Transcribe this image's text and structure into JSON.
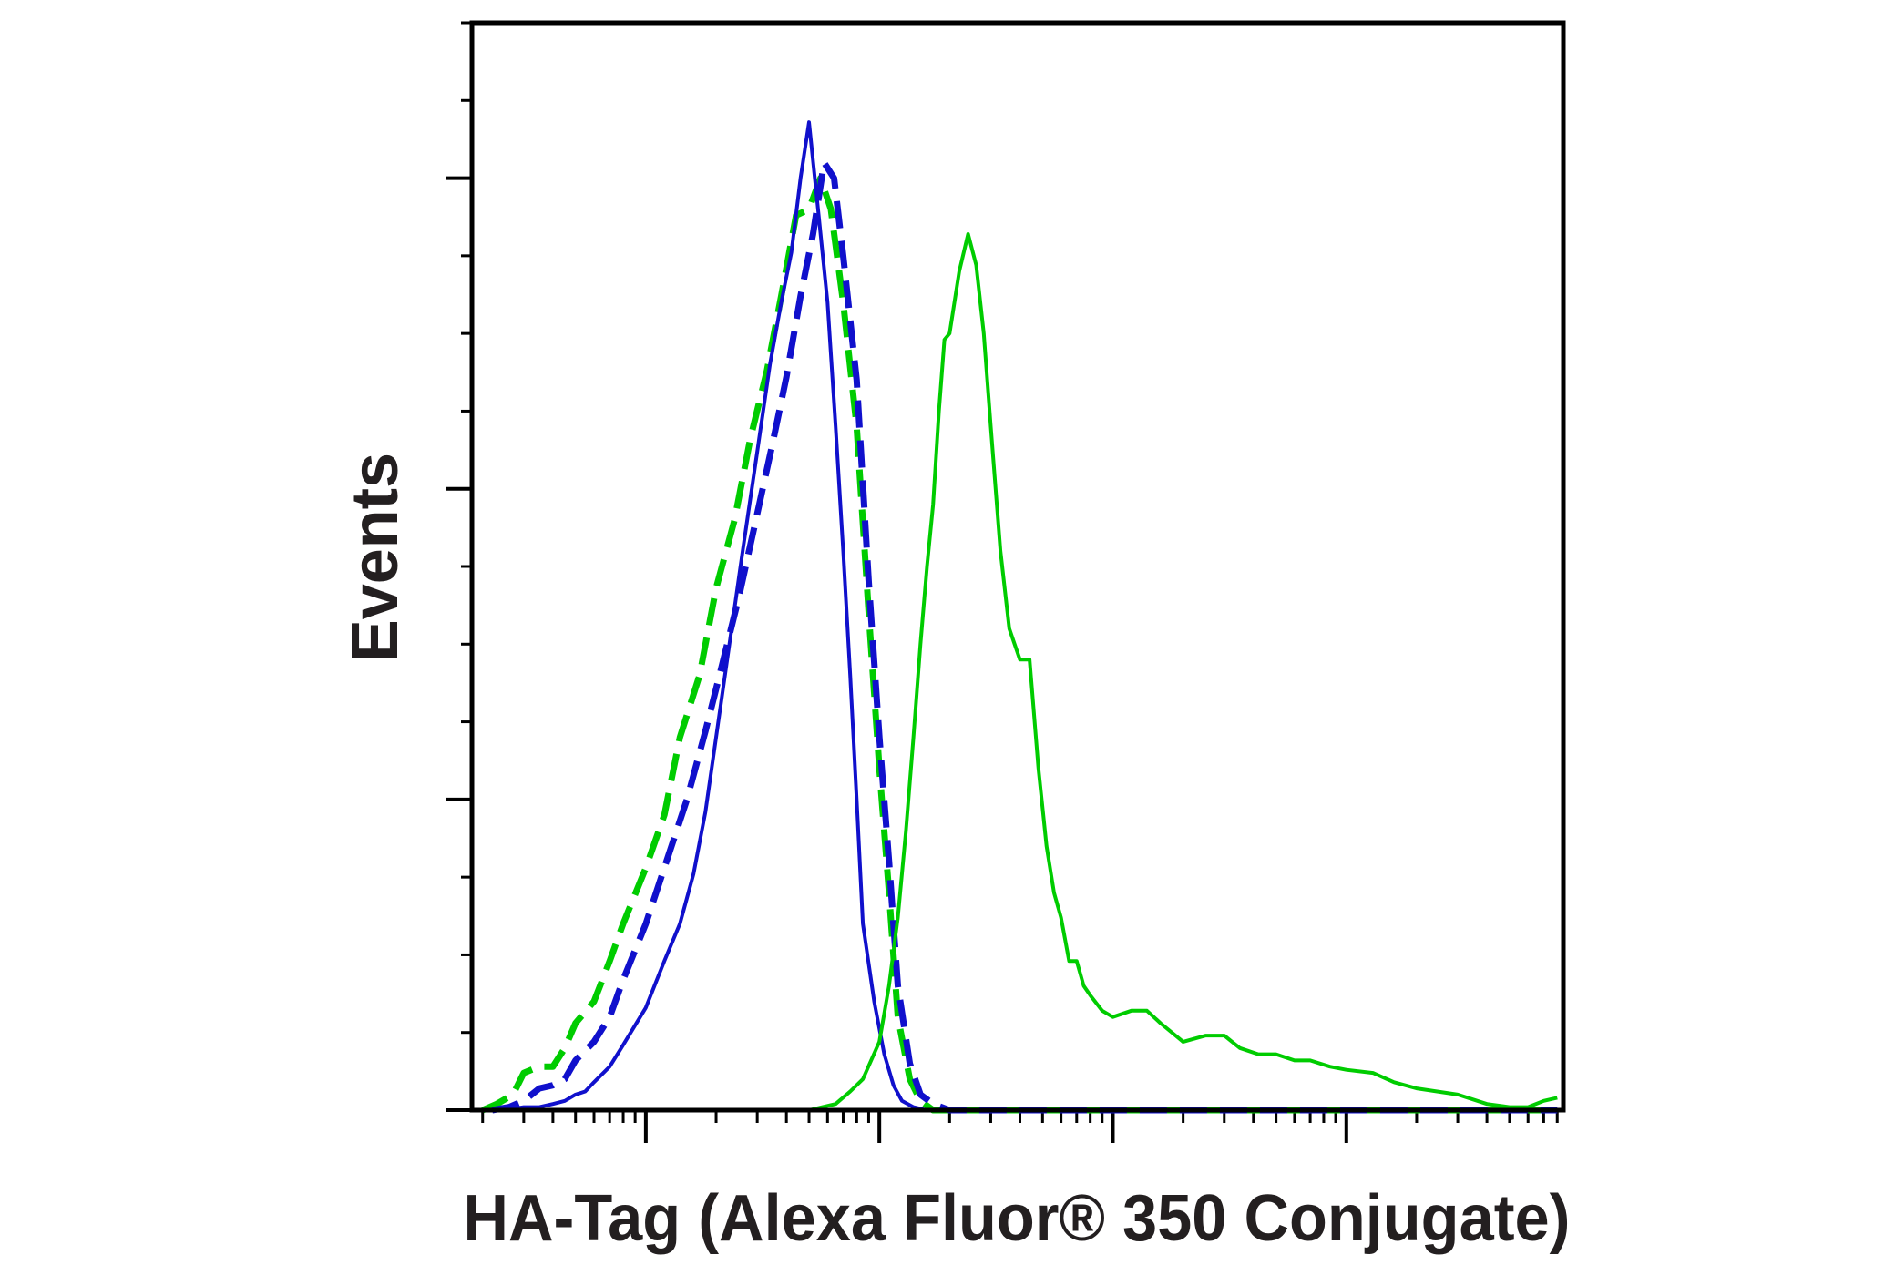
{
  "chart_data": {
    "type": "line",
    "title": "",
    "xlabel": "HA-Tag (Alexa Fluor® 350 Conjugate)",
    "ylabel": "Events",
    "x_scale": "log",
    "xlim": [
      0.18,
      8500
    ],
    "ylim": [
      0,
      350
    ],
    "grid": false,
    "legend": "none",
    "tick_labels_shown": false,
    "series": [
      {
        "color": "#00cc00",
        "style": "dashed",
        "x": [
          0.2,
          0.23,
          0.27,
          0.3,
          0.35,
          0.4,
          0.45,
          0.5,
          0.6,
          0.7,
          0.8,
          1.0,
          1.2,
          1.4,
          1.7,
          2.0,
          2.4,
          2.8,
          3.3,
          3.8,
          4.4,
          5.0,
          5.6,
          6.2,
          7.0,
          8.0,
          9.0,
          10.0,
          11.0,
          12.0,
          13.5,
          15.0,
          17.0,
          20.0,
          25.0,
          40.0,
          100.0,
          1000.0,
          8000.0
        ],
        "y": [
          0,
          2,
          5,
          12,
          14,
          14,
          20,
          28,
          35,
          48,
          60,
          78,
          95,
          120,
          140,
          168,
          190,
          216,
          238,
          262,
          288,
          290,
          300,
          290,
          260,
          220,
          160,
          110,
          70,
          30,
          10,
          3,
          0,
          0,
          0,
          0,
          0,
          0,
          0
        ]
      },
      {
        "color": "#1010cc",
        "style": "dashed",
        "x": [
          0.22,
          0.26,
          0.3,
          0.35,
          0.4,
          0.45,
          0.5,
          0.6,
          0.7,
          0.8,
          1.0,
          1.2,
          1.5,
          1.8,
          2.1,
          2.5,
          3.0,
          3.5,
          4.0,
          4.6,
          5.2,
          5.8,
          6.4,
          7.0,
          8.0,
          9.0,
          10.0,
          11.0,
          12.0,
          13.5,
          15.0,
          17.0,
          20.0,
          30.0,
          100.0,
          1000.0,
          8000.0
        ],
        "y": [
          0,
          1,
          3,
          7,
          8,
          10,
          16,
          22,
          30,
          42,
          60,
          78,
          100,
          122,
          142,
          165,
          192,
          215,
          236,
          262,
          282,
          305,
          300,
          275,
          235,
          170,
          120,
          80,
          40,
          15,
          5,
          2,
          0,
          0,
          0,
          0,
          0
        ]
      },
      {
        "color": "#1010cc",
        "style": "solid",
        "x": [
          0.2,
          0.25,
          0.3,
          0.35,
          0.4,
          0.45,
          0.5,
          0.55,
          0.6,
          0.7,
          0.8,
          1.0,
          1.2,
          1.4,
          1.6,
          1.8,
          2.0,
          2.3,
          2.6,
          3.0,
          3.4,
          3.8,
          4.2,
          4.6,
          5.0,
          5.5,
          6.0,
          6.5,
          7.0,
          7.5,
          8.0,
          8.5,
          9.5,
          10.5,
          11.5,
          12.5,
          14.0,
          16.0,
          20.0,
          30.0,
          100.0,
          1000.0,
          8000.0
        ],
        "y": [
          0,
          0,
          1,
          1,
          2,
          3,
          5,
          6,
          9,
          14,
          21,
          33,
          48,
          60,
          76,
          96,
          120,
          152,
          180,
          212,
          240,
          260,
          276,
          300,
          318,
          288,
          260,
          220,
          180,
          140,
          100,
          60,
          35,
          18,
          8,
          3,
          1,
          0,
          0,
          0,
          0,
          0,
          0
        ]
      },
      {
        "color": "#00cc00",
        "style": "solid",
        "x": [
          0.2,
          1.0,
          5.0,
          6.5,
          7.5,
          8.5,
          10.0,
          11.0,
          12.0,
          13.0,
          14.0,
          15.0,
          16.0,
          17.0,
          18.0,
          19.0,
          20.0,
          22.0,
          24.0,
          26.0,
          28.0,
          30.0,
          33.0,
          36.0,
          40.0,
          44.0,
          48.0,
          52.0,
          56.0,
          60.0,
          65.0,
          70.0,
          75.0,
          80.0,
          90.0,
          100.0,
          120.0,
          140.0,
          160.0,
          200.0,
          250.0,
          300.0,
          350.0,
          420.0,
          500.0,
          600.0,
          700.0,
          850.0,
          1000.0,
          1300.0,
          1600.0,
          2000.0,
          3000.0,
          4000.0,
          5000.0,
          6000.0,
          7000.0,
          8000.0
        ],
        "y": [
          0,
          0,
          0,
          2,
          6,
          10,
          22,
          40,
          62,
          90,
          120,
          150,
          175,
          195,
          225,
          248,
          250,
          270,
          282,
          272,
          250,
          220,
          180,
          155,
          145,
          145,
          110,
          85,
          70,
          62,
          48,
          48,
          40,
          37,
          32,
          30,
          32,
          32,
          28,
          22,
          24,
          24,
          20,
          18,
          18,
          16,
          16,
          14,
          13,
          12,
          9,
          7,
          5,
          2,
          1,
          1,
          3,
          4
        ]
      }
    ]
  }
}
